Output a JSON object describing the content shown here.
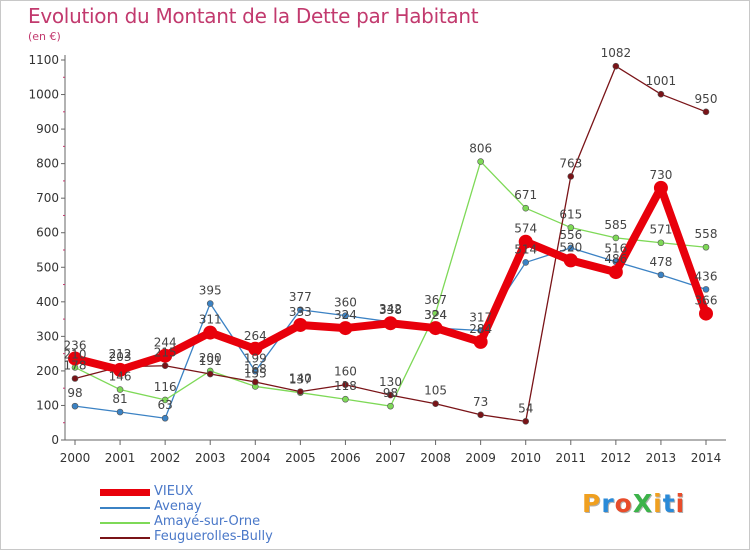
{
  "header": {
    "title": "Evolution du Montant de la Dette par Habitant",
    "subtitle": "(en €)"
  },
  "chart_data": {
    "type": "line",
    "title": "Evolution du Montant de la Dette par Habitant",
    "subtitle": "(en €)",
    "xlabel": "",
    "ylabel": "",
    "ylim": [
      0,
      1100
    ],
    "yticks": [
      0,
      100,
      200,
      300,
      400,
      500,
      600,
      700,
      800,
      900,
      1000,
      1100
    ],
    "categories": [
      "2000",
      "2001",
      "2002",
      "2003",
      "2004",
      "2005",
      "2006",
      "2007",
      "2008",
      "2009",
      "2010",
      "2011",
      "2012",
      "2013",
      "2014"
    ],
    "grid": false,
    "legend_position": "bottom-left",
    "series": [
      {
        "name": "VIEUX",
        "color": "#e8000b",
        "values": [
          236,
          203,
          244,
          311,
          264,
          333,
          324,
          338,
          324,
          284,
          574,
          520,
          486,
          730,
          366
        ]
      },
      {
        "name": "Avenay",
        "color": "#3b82c4",
        "values": [
          98,
          81,
          63,
          395,
          199,
          377,
          360,
          342,
          324,
          317,
          514,
          556,
          516,
          478,
          436
        ]
      },
      {
        "name": "Amayé-sur-Orne",
        "color": "#7ed957",
        "values": [
          210,
          146,
          116,
          200,
          155,
          137,
          118,
          98,
          367,
          806,
          671,
          615,
          585,
          571,
          558
        ]
      },
      {
        "name": "Feuguerolles-Bully",
        "color": "#7a1418",
        "values": [
          178,
          212,
          215,
          191,
          168,
          140,
          160,
          130,
          105,
          73,
          54,
          763,
          1082,
          1001,
          950
        ]
      }
    ]
  },
  "logo": {
    "text": "ProXiti",
    "colors": [
      "#f0a020",
      "#2a8ad8",
      "#e84c2a",
      "#3cb34a",
      "#f0a020",
      "#2a8ad8",
      "#e84c2a"
    ]
  }
}
